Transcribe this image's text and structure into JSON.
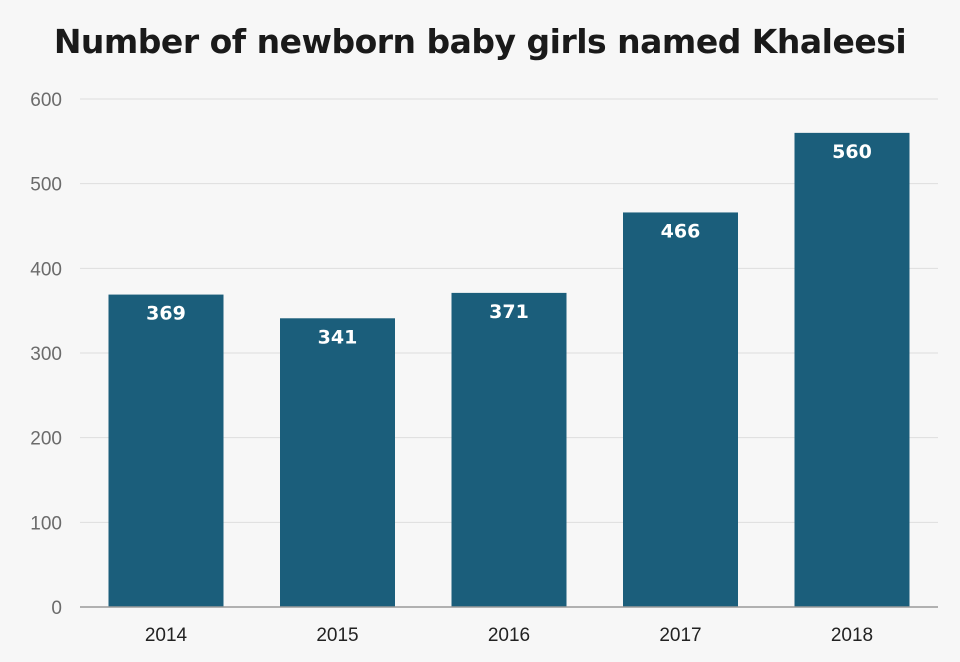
{
  "chart_data": {
    "type": "bar",
    "title": "Number of newborn baby girls named Khaleesi",
    "xlabel": "",
    "ylabel": "",
    "categories": [
      "2014",
      "2015",
      "2016",
      "2017",
      "2018"
    ],
    "values": [
      369,
      341,
      371,
      466,
      560
    ],
    "data_labels": [
      "369",
      "341",
      "371",
      "466",
      "560"
    ],
    "ylim": [
      0,
      600
    ],
    "yticks": [
      0,
      100,
      200,
      300,
      400,
      500,
      600
    ],
    "grid": true,
    "legend": "none",
    "colors": {
      "bar": "#1b5e7b",
      "background": "#f7f7f7",
      "grid": "#dedede"
    }
  }
}
